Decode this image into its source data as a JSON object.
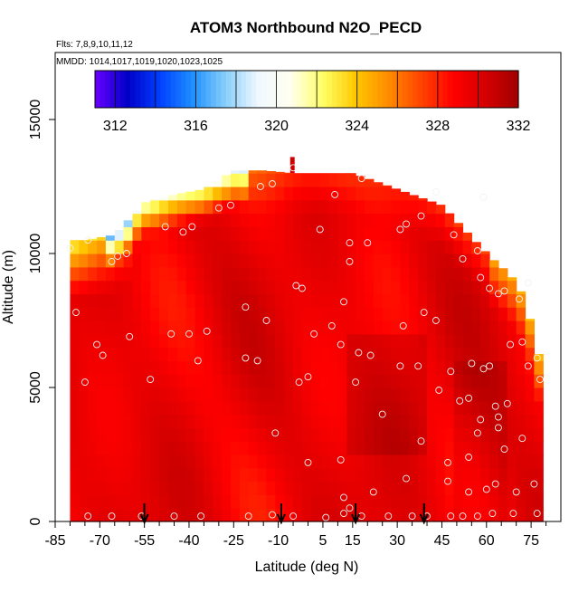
{
  "chart_data": {
    "type": "heatmap",
    "title": "ATOM3 Northbound N2O_PECD",
    "subtitle_flights": "Flts: 7,8,9,10,11,12",
    "subtitle_dates": "MMDD: 1014,1017,1019,1020,1023,1025",
    "xlabel": "Latitude (deg N)",
    "ylabel": "Altitude (m)",
    "xlim": [
      -85,
      85
    ],
    "ylim": [
      0,
      17500
    ],
    "x_ticks": [
      "-85",
      "-70",
      "-55",
      "-40",
      "-25",
      "-10",
      "5",
      "15",
      "30",
      "45",
      "60",
      "75"
    ],
    "x_tick_values": [
      -85,
      -70,
      -55,
      -40,
      -25,
      -10,
      5,
      15,
      30,
      45,
      60,
      75
    ],
    "y_ticks": [
      "0",
      "5000",
      "10000",
      "15000"
    ],
    "y_tick_values": [
      0,
      5000,
      10000,
      15000
    ],
    "colorbar": {
      "ticks": [
        "312",
        "316",
        "320",
        "324",
        "328",
        "332"
      ],
      "tick_values": [
        312,
        316,
        320,
        324,
        328,
        332
      ],
      "range": [
        311,
        332
      ],
      "colors": [
        "#6a00ff",
        "#0000c8",
        "#0040ff",
        "#1e90ff",
        "#87cefa",
        "#f0f8ff",
        "#fffff0",
        "#ffff66",
        "#ffc800",
        "#ff8c00",
        "#ff4500",
        "#ff0000",
        "#d40000",
        "#a00000"
      ]
    },
    "field": {
      "lat_range": [
        -80,
        78
      ],
      "lat_step": 3,
      "alt_step": 500,
      "ceiling_lat": [
        -80,
        -75,
        -65,
        -55,
        -45,
        -35,
        -25,
        -15,
        -5,
        5,
        15,
        25,
        35,
        45,
        55,
        62,
        68,
        72,
        76,
        78
      ],
      "ceiling_alt": [
        10500,
        10500,
        10700,
        11900,
        12200,
        12400,
        13100,
        13100,
        13000,
        13000,
        13000,
        12600,
        12200,
        11800,
        10600,
        9800,
        9200,
        8500,
        7000,
        6000
      ],
      "base_value": 329.5
    },
    "sample_points": [
      [
        -74,
        200
      ],
      [
        -66,
        200
      ],
      [
        -56,
        200
      ],
      [
        -45,
        200
      ],
      [
        -36,
        200
      ],
      [
        -20,
        200
      ],
      [
        -12,
        250
      ],
      [
        -5,
        200
      ],
      [
        6,
        150
      ],
      [
        12,
        300
      ],
      [
        14,
        500
      ],
      [
        18,
        200
      ],
      [
        27,
        200
      ],
      [
        35,
        200
      ],
      [
        40,
        200
      ],
      [
        48,
        200
      ],
      [
        52,
        200
      ],
      [
        57,
        200
      ],
      [
        62,
        300
      ],
      [
        69,
        300
      ],
      [
        77,
        300
      ],
      [
        -78,
        7800
      ],
      [
        -71,
        6600
      ],
      [
        -69,
        6200
      ],
      [
        -75,
        5200
      ],
      [
        -60,
        6900
      ],
      [
        -53,
        5300
      ],
      [
        -46,
        7000
      ],
      [
        -40,
        7000
      ],
      [
        -34,
        7100
      ],
      [
        -37,
        6000
      ],
      [
        -21,
        6100
      ],
      [
        -17,
        6000
      ],
      [
        -21,
        8000
      ],
      [
        -14,
        7500
      ],
      [
        -3,
        5200
      ],
      [
        0,
        5400
      ],
      [
        2,
        7000
      ],
      [
        8,
        7300
      ],
      [
        11,
        6600
      ],
      [
        12,
        8200
      ],
      [
        17,
        6300
      ],
      [
        16,
        5200
      ],
      [
        21,
        6200
      ],
      [
        25,
        4000
      ],
      [
        31,
        5800
      ],
      [
        32,
        7300
      ],
      [
        37,
        5800
      ],
      [
        39,
        7800
      ],
      [
        43,
        7500
      ],
      [
        44,
        4900
      ],
      [
        48,
        5600
      ],
      [
        51,
        4500
      ],
      [
        54,
        4600
      ],
      [
        55,
        5900
      ],
      [
        59,
        5700
      ],
      [
        61,
        5800
      ],
      [
        63,
        4300
      ],
      [
        64,
        3900
      ],
      [
        67,
        4400
      ],
      [
        68,
        6600
      ],
      [
        72,
        6700
      ],
      [
        74,
        5800
      ],
      [
        77,
        6100
      ],
      [
        78,
        5300
      ],
      [
        -80,
        10200
      ],
      [
        -74,
        10500
      ],
      [
        -66,
        9700
      ],
      [
        -64,
        9900
      ],
      [
        -61,
        10000
      ],
      [
        -48,
        11000
      ],
      [
        -42,
        10800
      ],
      [
        -39,
        11000
      ],
      [
        -30,
        11700
      ],
      [
        -26,
        11800
      ],
      [
        -16,
        12500
      ],
      [
        -12,
        12600
      ],
      [
        -5,
        13200
      ],
      [
        4,
        10900
      ],
      [
        9,
        12200
      ],
      [
        14,
        10400
      ],
      [
        14,
        9700
      ],
      [
        18,
        12800
      ],
      [
        20,
        10400
      ],
      [
        31,
        10900
      ],
      [
        33,
        11100
      ],
      [
        38,
        11400
      ],
      [
        43,
        12300
      ],
      [
        49,
        10700
      ],
      [
        52,
        9800
      ],
      [
        57,
        10100
      ],
      [
        59,
        12100
      ],
      [
        58,
        9100
      ],
      [
        61,
        8700
      ],
      [
        64,
        8500
      ],
      [
        66,
        8600
      ],
      [
        71,
        8300
      ],
      [
        74,
        8900
      ],
      [
        -11,
        3300
      ],
      [
        0,
        2200
      ],
      [
        11,
        2300
      ],
      [
        12,
        900
      ],
      [
        22,
        1100
      ],
      [
        33,
        1600
      ],
      [
        47,
        1500
      ],
      [
        54,
        1100
      ],
      [
        60,
        1200
      ],
      [
        63,
        1400
      ],
      [
        70,
        1100
      ],
      [
        76,
        1400
      ],
      [
        57,
        3300
      ],
      [
        54,
        2400
      ],
      [
        66,
        2700
      ],
      [
        47,
        2200
      ],
      [
        38,
        3000
      ],
      [
        58,
        3800
      ],
      [
        64,
        3500
      ],
      [
        72,
        3100
      ],
      [
        -4,
        8800
      ],
      [
        -2,
        8700
      ]
    ],
    "flight_markers_lat": [
      -55,
      -9,
      16,
      39
    ],
    "grid": false
  }
}
